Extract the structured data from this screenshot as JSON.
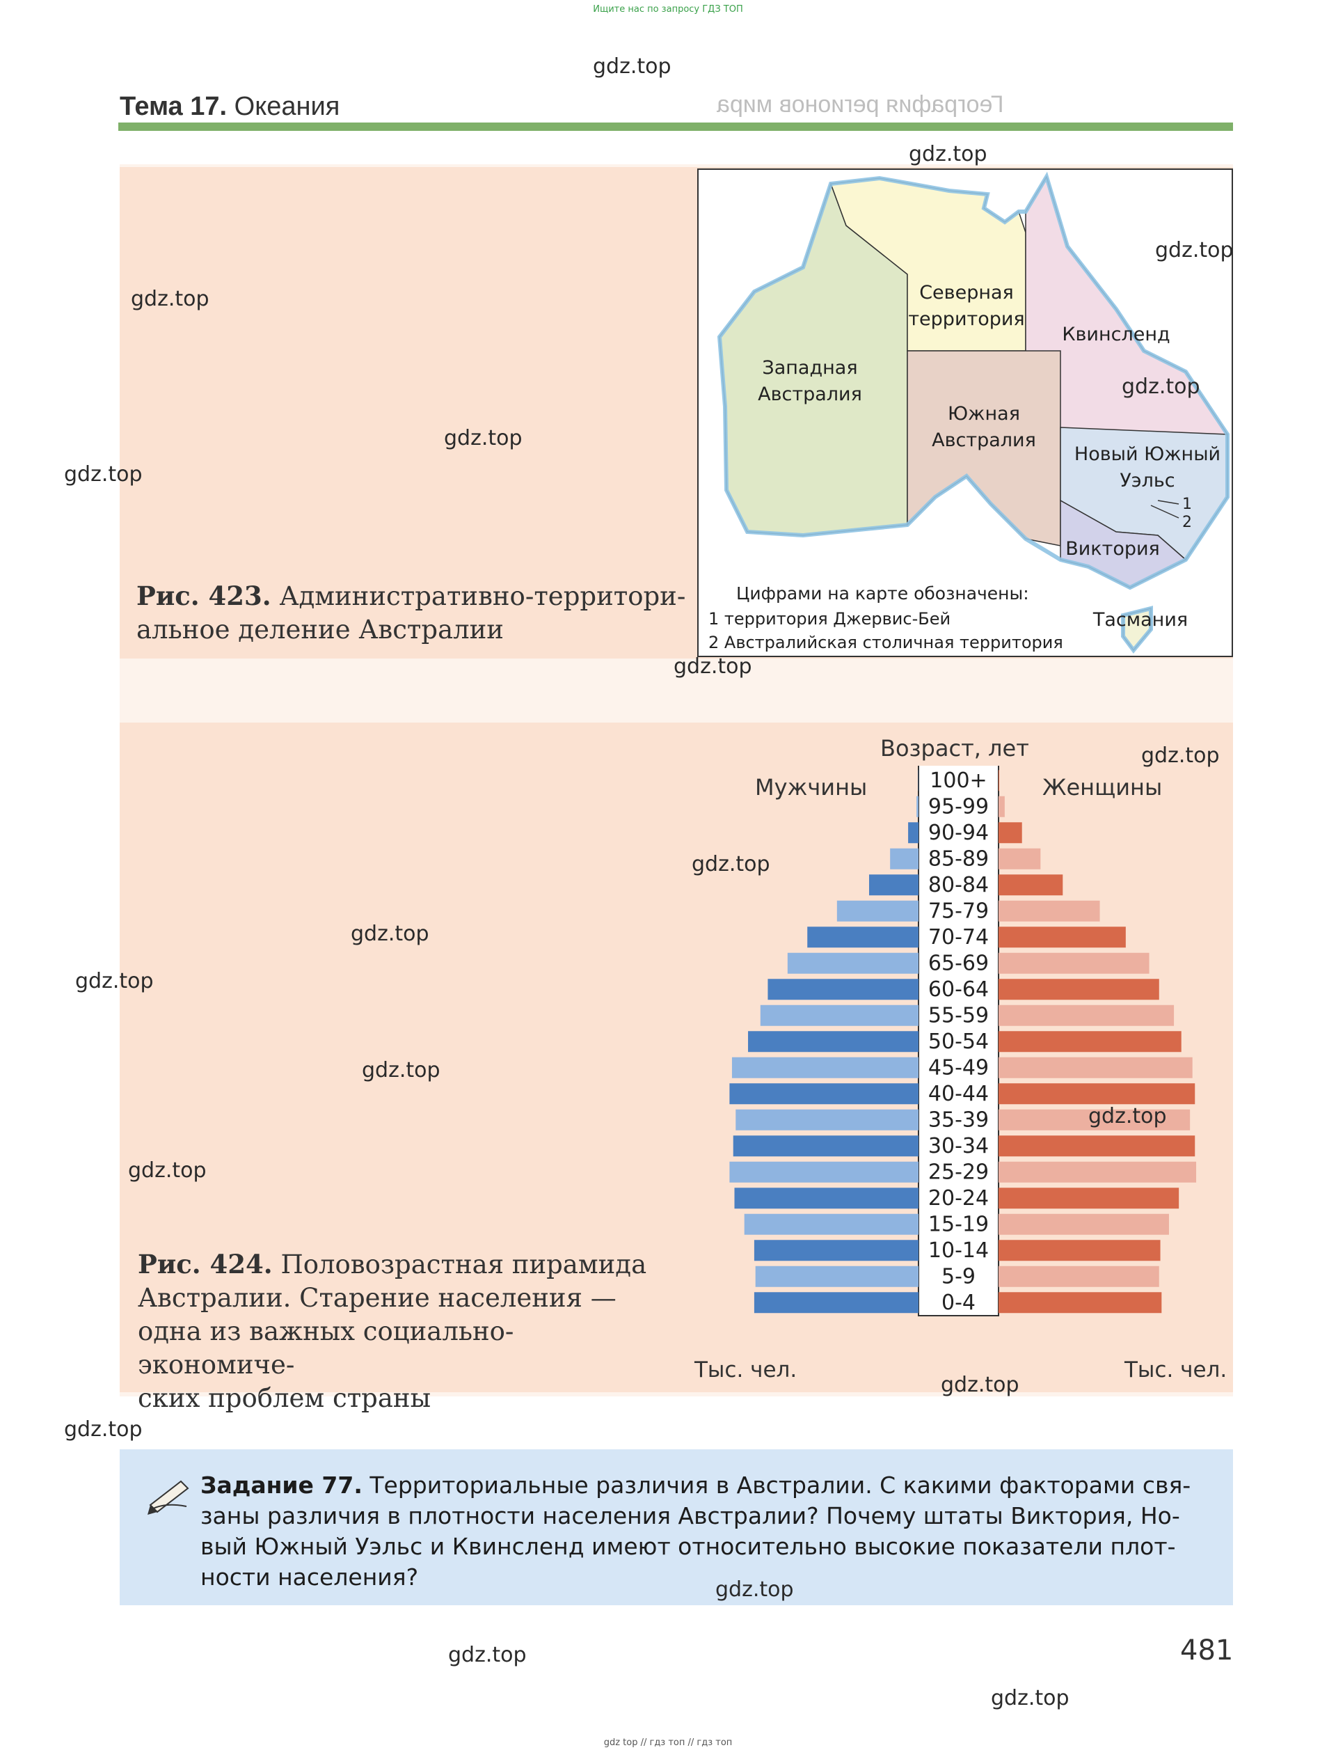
{
  "top_note": "Ищите нас по запросу ГДЗ ТОП",
  "bottom_note": "gdz top  //  гдз топ  //  гдз топ",
  "watermark": "gdz.top",
  "header": {
    "topic_label": "Тема 17.",
    "topic_name": "Океания",
    "section_mirrored": "География регионов мира"
  },
  "figure423": {
    "number": "Рис. 423.",
    "caption_line1": "Административно-территори-",
    "caption_line2": "альное деление Австралии",
    "regions": {
      "western_1": "Западная",
      "western_2": "Австралия",
      "northern_1": "Северная",
      "northern_2": "территория",
      "queensland": "Квинсленд",
      "south_1": "Южная",
      "south_2": "Австралия",
      "nsw_1": "Новый Южный",
      "nsw_2": "Уэльс",
      "victoria": "Виктория",
      "tasmania": "Тасмания",
      "marker1": "1",
      "marker2": "2"
    },
    "legend_title": "Цифрами на карте обозначены:",
    "legend_1": "1 территория Джервис-Бей",
    "legend_2": "2 Австралийская столичная территория",
    "colors": {
      "western": "#dfe8c7",
      "northern": "#fbf7d2",
      "queensland": "#f2dce6",
      "south": "#e8d2c7",
      "nsw": "#d6e2f0",
      "victoria": "#d2d2ea",
      "tasmania": "#f3f3d6",
      "coast": "#8fc3e3"
    }
  },
  "figure424": {
    "number": "Рис. 424.",
    "caption_line1": "Половозрастная пирамида",
    "caption_line2": "Австралии. Старение населения —",
    "caption_line3": "одна из важных социально-экономиче-",
    "caption_line4": "ских проблем страны"
  },
  "chart_data": {
    "type": "bar",
    "orientation": "horizontal-pyramid",
    "title": "Возраст, лет",
    "left_label": "Мужчины",
    "right_label": "Женщины",
    "xlabel_left": "Тыс. чел.",
    "xlabel_right": "Тыс. чел.",
    "xlim": [
      0,
      845
    ],
    "x_ticks_left": [
      "845",
      "630",
      "420",
      "210",
      "0"
    ],
    "x_ticks_right": [
      "0",
      "210",
      "420",
      "630",
      "845"
    ],
    "categories": [
      "0-4",
      "5-9",
      "10-14",
      "15-19",
      "20-24",
      "25-29",
      "30-34",
      "35-39",
      "40-44",
      "45-49",
      "50-54",
      "55-59",
      "60-64",
      "65-69",
      "70-74",
      "75-79",
      "80-84",
      "85-89",
      "90-94",
      "95-99",
      "100+"
    ],
    "series": [
      {
        "name": "Мужчины",
        "values": [
          665,
          660,
          665,
          705,
          745,
          765,
          750,
          740,
          765,
          755,
          690,
          640,
          610,
          530,
          450,
          330,
          200,
          115,
          42,
          8,
          1
        ],
        "colors": [
          "#4a7fc1",
          "#8fb4e0"
        ]
      },
      {
        "name": "Женщины",
        "values": [
          660,
          650,
          655,
          690,
          730,
          800,
          795,
          775,
          795,
          785,
          740,
          710,
          650,
          610,
          515,
          410,
          260,
          170,
          95,
          25,
          3
        ],
        "colors": [
          "#d7694a",
          "#ecb0a0"
        ]
      }
    ],
    "grid": false,
    "legend": "none"
  },
  "task": {
    "label": "Задание 77.",
    "line1_rest": " Территориальные различия в Австралии. С какими факторами свя-",
    "line2": "заны различия в плотности населения Австралии? Почему штаты Виктория, Но-",
    "line3": "вый Южный Уэльс и Квинсленд имеют относительно высокие показатели плот-",
    "line4": "ности населения?"
  },
  "page_number": "481"
}
